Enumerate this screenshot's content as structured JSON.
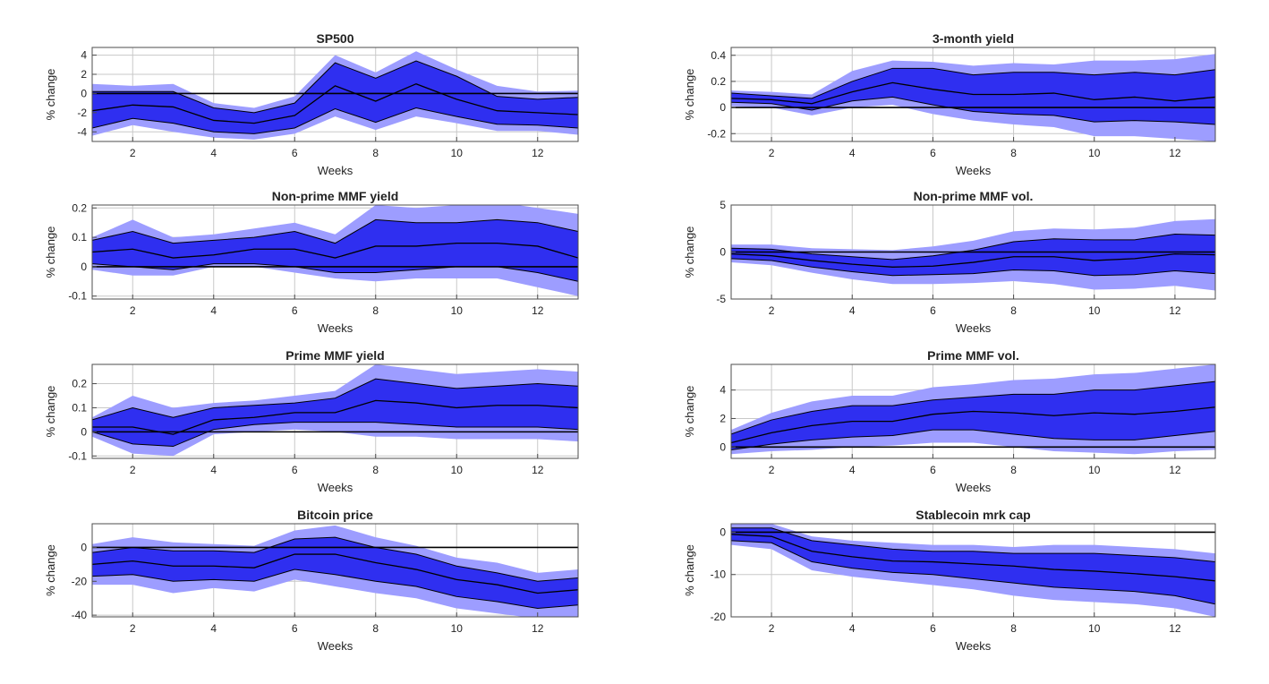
{
  "figure": {
    "xlabel": "Weeks",
    "ylabel": "% change"
  },
  "colors": {
    "outer_band": "#9d9dff",
    "inner_band": "#2f2ff0",
    "median_line": "#000000",
    "zero_line": "#000000",
    "grid": "#c8c8c8"
  },
  "chart_data": [
    {
      "type": "area",
      "title": "SP500",
      "xlabel": "Weeks",
      "ylabel": "% change",
      "x": [
        1,
        2,
        3,
        4,
        5,
        6,
        7,
        8,
        9,
        10,
        11,
        12,
        13
      ],
      "xlim": [
        1,
        13
      ],
      "xticks": [
        2,
        4,
        6,
        8,
        10,
        12
      ],
      "xtick_labels": [
        "2",
        "4",
        "6",
        "8",
        "10",
        "12"
      ],
      "ylim": [
        -5,
        4.8
      ],
      "yticks": [
        -4,
        -2,
        0,
        2,
        4
      ],
      "ytick_labels": [
        "-4",
        "-2",
        "0",
        "2",
        "4"
      ],
      "grid": true,
      "series": [
        {
          "name": "outer_upper",
          "values": [
            1.0,
            0.8,
            1.0,
            -1.0,
            -1.5,
            -0.3,
            4.0,
            2.2,
            4.4,
            2.5,
            0.8,
            0.2,
            0.3
          ]
        },
        {
          "name": "inner_upper",
          "values": [
            0.2,
            0.2,
            0.2,
            -1.5,
            -2.0,
            -1.0,
            3.2,
            1.6,
            3.4,
            1.8,
            -0.3,
            -0.6,
            -0.4
          ]
        },
        {
          "name": "median",
          "values": [
            -1.8,
            -1.2,
            -1.4,
            -2.8,
            -3.1,
            -2.3,
            0.8,
            -0.8,
            1.0,
            -0.6,
            -1.8,
            -2.0,
            -2.2
          ]
        },
        {
          "name": "inner_lower",
          "values": [
            -3.6,
            -2.6,
            -3.1,
            -4.0,
            -4.2,
            -3.6,
            -1.6,
            -3.0,
            -1.5,
            -2.4,
            -3.2,
            -3.3,
            -3.6
          ]
        },
        {
          "name": "outer_lower",
          "values": [
            -4.4,
            -3.3,
            -4.0,
            -4.6,
            -4.8,
            -4.2,
            -2.4,
            -3.8,
            -2.4,
            -3.1,
            -3.9,
            -3.9,
            -4.3
          ]
        }
      ]
    },
    {
      "type": "area",
      "title": "3-month yield",
      "xlabel": "Weeks",
      "ylabel": "% change",
      "x": [
        1,
        2,
        3,
        4,
        5,
        6,
        7,
        8,
        9,
        10,
        11,
        12,
        13
      ],
      "xlim": [
        1,
        13
      ],
      "xticks": [
        2,
        4,
        6,
        8,
        10,
        12
      ],
      "xtick_labels": [
        "2",
        "4",
        "6",
        "8",
        "10",
        "12"
      ],
      "ylim": [
        -0.26,
        0.46
      ],
      "yticks": [
        -0.2,
        0,
        0.2,
        0.4
      ],
      "ytick_labels": [
        "-0.2",
        "0",
        "0.2",
        "0.4"
      ],
      "grid": true,
      "series": [
        {
          "name": "outer_upper",
          "values": [
            0.13,
            0.12,
            0.1,
            0.28,
            0.36,
            0.35,
            0.32,
            0.34,
            0.33,
            0.36,
            0.36,
            0.37,
            0.41
          ]
        },
        {
          "name": "inner_upper",
          "values": [
            0.11,
            0.09,
            0.07,
            0.2,
            0.3,
            0.3,
            0.25,
            0.27,
            0.27,
            0.25,
            0.27,
            0.25,
            0.29
          ]
        },
        {
          "name": "median",
          "values": [
            0.07,
            0.06,
            0.03,
            0.12,
            0.19,
            0.14,
            0.1,
            0.1,
            0.11,
            0.06,
            0.08,
            0.05,
            0.08
          ]
        },
        {
          "name": "inner_lower",
          "values": [
            0.04,
            0.03,
            -0.02,
            0.05,
            0.08,
            0.02,
            -0.03,
            -0.05,
            -0.06,
            -0.11,
            -0.1,
            -0.11,
            -0.13
          ]
        },
        {
          "name": "outer_lower",
          "values": [
            0.01,
            0.0,
            -0.06,
            0.0,
            0.02,
            -0.05,
            -0.1,
            -0.13,
            -0.15,
            -0.22,
            -0.22,
            -0.24,
            -0.26
          ]
        }
      ]
    },
    {
      "type": "area",
      "title": "Non-prime MMF yield",
      "xlabel": "Weeks",
      "ylabel": "% change",
      "x": [
        1,
        2,
        3,
        4,
        5,
        6,
        7,
        8,
        9,
        10,
        11,
        12,
        13
      ],
      "xlim": [
        1,
        13
      ],
      "xticks": [
        2,
        4,
        6,
        8,
        10,
        12
      ],
      "xtick_labels": [
        "2",
        "4",
        "6",
        "8",
        "10",
        "12"
      ],
      "ylim": [
        -0.11,
        0.21
      ],
      "yticks": [
        -0.1,
        0,
        0.1,
        0.2
      ],
      "ytick_labels": [
        "-0.1",
        "0",
        "0.1",
        "0.2"
      ],
      "grid": true,
      "series": [
        {
          "name": "outer_upper",
          "values": [
            0.1,
            0.16,
            0.1,
            0.11,
            0.13,
            0.15,
            0.11,
            0.21,
            0.2,
            0.21,
            0.22,
            0.2,
            0.18
          ]
        },
        {
          "name": "inner_upper",
          "values": [
            0.09,
            0.12,
            0.08,
            0.09,
            0.1,
            0.12,
            0.08,
            0.16,
            0.15,
            0.15,
            0.16,
            0.15,
            0.12
          ]
        },
        {
          "name": "median",
          "values": [
            0.05,
            0.06,
            0.03,
            0.04,
            0.06,
            0.06,
            0.03,
            0.07,
            0.07,
            0.08,
            0.08,
            0.07,
            0.03
          ]
        },
        {
          "name": "inner_lower",
          "values": [
            0.01,
            0.0,
            -0.01,
            0.01,
            0.01,
            0.0,
            -0.02,
            -0.02,
            -0.01,
            0.0,
            0.0,
            -0.02,
            -0.05
          ]
        },
        {
          "name": "outer_lower",
          "values": [
            -0.01,
            -0.03,
            -0.03,
            0.0,
            0.0,
            -0.02,
            -0.04,
            -0.05,
            -0.04,
            -0.04,
            -0.04,
            -0.07,
            -0.1
          ]
        }
      ]
    },
    {
      "type": "area",
      "title": "Non-prime MMF vol.",
      "xlabel": "Weeks",
      "ylabel": "% change",
      "x": [
        1,
        2,
        3,
        4,
        5,
        6,
        7,
        8,
        9,
        10,
        11,
        12,
        13
      ],
      "xlim": [
        1,
        13
      ],
      "xticks": [
        2,
        4,
        6,
        8,
        10,
        12
      ],
      "xtick_labels": [
        "2",
        "4",
        "6",
        "8",
        "10",
        "12"
      ],
      "ylim": [
        -5,
        5
      ],
      "yticks": [
        -5,
        0,
        5
      ],
      "ytick_labels": [
        "-5",
        "0",
        "5"
      ],
      "grid": true,
      "series": [
        {
          "name": "outer_upper",
          "values": [
            0.8,
            0.8,
            0.4,
            0.3,
            0.2,
            0.6,
            1.2,
            2.2,
            2.5,
            2.4,
            2.6,
            3.3,
            3.5
          ]
        },
        {
          "name": "inner_upper",
          "values": [
            0.4,
            0.3,
            -0.2,
            -0.5,
            -0.8,
            -0.4,
            0.2,
            1.1,
            1.4,
            1.3,
            1.3,
            1.9,
            1.8
          ]
        },
        {
          "name": "median",
          "values": [
            -0.2,
            -0.4,
            -0.9,
            -1.3,
            -1.6,
            -1.5,
            -1.1,
            -0.5,
            -0.5,
            -0.9,
            -0.7,
            -0.2,
            -0.3
          ]
        },
        {
          "name": "inner_lower",
          "values": [
            -0.7,
            -0.9,
            -1.6,
            -2.1,
            -2.5,
            -2.4,
            -2.3,
            -1.9,
            -2.0,
            -2.5,
            -2.4,
            -2.0,
            -2.3
          ]
        },
        {
          "name": "outer_lower",
          "values": [
            -1.1,
            -1.4,
            -2.2,
            -2.9,
            -3.4,
            -3.4,
            -3.3,
            -3.1,
            -3.4,
            -4.0,
            -3.9,
            -3.6,
            -4.1
          ]
        }
      ]
    },
    {
      "type": "area",
      "title": "Prime MMF yield",
      "xlabel": "Weeks",
      "ylabel": "% change",
      "x": [
        1,
        2,
        3,
        4,
        5,
        6,
        7,
        8,
        9,
        10,
        11,
        12,
        13
      ],
      "xlim": [
        1,
        13
      ],
      "xticks": [
        2,
        4,
        6,
        8,
        10,
        12
      ],
      "xtick_labels": [
        "2",
        "4",
        "6",
        "8",
        "10",
        "12"
      ],
      "ylim": [
        -0.11,
        0.28
      ],
      "yticks": [
        -0.1,
        0,
        0.1,
        0.2
      ],
      "ytick_labels": [
        "-0.1",
        "0",
        "0.1",
        "0.2"
      ],
      "grid": true,
      "series": [
        {
          "name": "outer_upper",
          "values": [
            0.06,
            0.15,
            0.1,
            0.12,
            0.13,
            0.15,
            0.17,
            0.28,
            0.26,
            0.24,
            0.25,
            0.26,
            0.25
          ]
        },
        {
          "name": "inner_upper",
          "values": [
            0.05,
            0.1,
            0.06,
            0.1,
            0.11,
            0.12,
            0.14,
            0.22,
            0.2,
            0.18,
            0.19,
            0.2,
            0.19
          ]
        },
        {
          "name": "median",
          "values": [
            0.02,
            0.02,
            -0.01,
            0.05,
            0.06,
            0.08,
            0.08,
            0.13,
            0.12,
            0.1,
            0.11,
            0.11,
            0.1
          ]
        },
        {
          "name": "inner_lower",
          "values": [
            0.0,
            -0.05,
            -0.06,
            0.01,
            0.03,
            0.04,
            0.04,
            0.04,
            0.03,
            0.02,
            0.02,
            0.02,
            0.01
          ]
        },
        {
          "name": "outer_lower",
          "values": [
            -0.02,
            -0.09,
            -0.1,
            -0.01,
            0.0,
            0.01,
            0.0,
            -0.02,
            -0.02,
            -0.03,
            -0.03,
            -0.03,
            -0.04
          ]
        }
      ]
    },
    {
      "type": "area",
      "title": "Prime MMF vol.",
      "xlabel": "Weeks",
      "ylabel": "% change",
      "x": [
        1,
        2,
        3,
        4,
        5,
        6,
        7,
        8,
        9,
        10,
        11,
        12,
        13
      ],
      "xlim": [
        1,
        13
      ],
      "xticks": [
        2,
        4,
        6,
        8,
        10,
        12
      ],
      "xtick_labels": [
        "2",
        "4",
        "6",
        "8",
        "10",
        "12"
      ],
      "ylim": [
        -0.8,
        5.8
      ],
      "yticks": [
        0,
        2,
        4
      ],
      "ytick_labels": [
        "0",
        "2",
        "4"
      ],
      "grid": true,
      "series": [
        {
          "name": "outer_upper",
          "values": [
            1.2,
            2.4,
            3.2,
            3.6,
            3.6,
            4.2,
            4.4,
            4.7,
            4.8,
            5.1,
            5.2,
            5.5,
            5.8
          ]
        },
        {
          "name": "inner_upper",
          "values": [
            0.9,
            1.9,
            2.5,
            2.9,
            2.9,
            3.3,
            3.5,
            3.7,
            3.7,
            4.0,
            4.0,
            4.3,
            4.6
          ]
        },
        {
          "name": "median",
          "values": [
            0.3,
            1.0,
            1.5,
            1.8,
            1.8,
            2.3,
            2.5,
            2.4,
            2.2,
            2.4,
            2.3,
            2.5,
            2.8
          ]
        },
        {
          "name": "inner_lower",
          "values": [
            -0.2,
            0.2,
            0.5,
            0.7,
            0.8,
            1.2,
            1.2,
            0.9,
            0.6,
            0.5,
            0.5,
            0.8,
            1.1
          ]
        },
        {
          "name": "outer_lower",
          "values": [
            -0.5,
            -0.3,
            -0.2,
            0.0,
            0.1,
            0.3,
            0.3,
            0.0,
            -0.3,
            -0.4,
            -0.5,
            -0.3,
            -0.2
          ]
        }
      ]
    },
    {
      "type": "area",
      "title": "Bitcoin price",
      "xlabel": "Weeks",
      "ylabel": "% change",
      "x": [
        1,
        2,
        3,
        4,
        5,
        6,
        7,
        8,
        9,
        10,
        11,
        12,
        13
      ],
      "xlim": [
        1,
        13
      ],
      "xticks": [
        2,
        4,
        6,
        8,
        10,
        12
      ],
      "xtick_labels": [
        "2",
        "4",
        "6",
        "8",
        "10",
        "12"
      ],
      "ylim": [
        -41,
        14
      ],
      "yticks": [
        -40,
        -20,
        0
      ],
      "ytick_labels": [
        "-40",
        "-20",
        "0"
      ],
      "grid": true,
      "series": [
        {
          "name": "outer_upper",
          "values": [
            2,
            6,
            3,
            2,
            1,
            10,
            13,
            6,
            1,
            -6,
            -9,
            -15,
            -13
          ]
        },
        {
          "name": "inner_upper",
          "values": [
            -3,
            0,
            -2,
            -2,
            -3,
            5,
            6,
            0,
            -4,
            -11,
            -15,
            -20,
            -18
          ]
        },
        {
          "name": "median",
          "values": [
            -10,
            -8,
            -11,
            -11,
            -12,
            -4,
            -4,
            -9,
            -13,
            -19,
            -22,
            -27,
            -25
          ]
        },
        {
          "name": "inner_lower",
          "values": [
            -17,
            -16,
            -20,
            -19,
            -20,
            -13,
            -16,
            -20,
            -23,
            -29,
            -32,
            -36,
            -34
          ]
        },
        {
          "name": "outer_lower",
          "values": [
            -22,
            -22,
            -27,
            -24,
            -26,
            -19,
            -23,
            -27,
            -30,
            -36,
            -39,
            -42,
            -41
          ]
        }
      ]
    },
    {
      "type": "area",
      "title": "Stablecoin mrk cap",
      "xlabel": "Weeks",
      "ylabel": "% change",
      "x": [
        1,
        2,
        3,
        4,
        5,
        6,
        7,
        8,
        9,
        10,
        11,
        12,
        13
      ],
      "xlim": [
        1,
        13
      ],
      "xticks": [
        2,
        4,
        6,
        8,
        10,
        12
      ],
      "xtick_labels": [
        "2",
        "4",
        "6",
        "8",
        "10",
        "12"
      ],
      "ylim": [
        -20,
        2
      ],
      "yticks": [
        -20,
        -10,
        0
      ],
      "ytick_labels": [
        "-20",
        "-10",
        "0"
      ],
      "grid": true,
      "series": [
        {
          "name": "outer_upper",
          "values": [
            2,
            2,
            -1,
            -2,
            -2.5,
            -3,
            -3,
            -3.5,
            -3,
            -3,
            -3.5,
            -4,
            -5
          ]
        },
        {
          "name": "inner_upper",
          "values": [
            1,
            1,
            -2,
            -3,
            -4,
            -4.5,
            -4.5,
            -5,
            -5,
            -5,
            -5.5,
            -6,
            -7
          ]
        },
        {
          "name": "median",
          "values": [
            -0.5,
            -1,
            -4.5,
            -5.8,
            -6.8,
            -7,
            -7.5,
            -8,
            -8.8,
            -9.2,
            -9.8,
            -10.5,
            -11.5
          ]
        },
        {
          "name": "inner_lower",
          "values": [
            -2,
            -2.5,
            -7,
            -8.5,
            -9.5,
            -10,
            -11,
            -12,
            -13,
            -13.5,
            -14,
            -15,
            -17
          ]
        },
        {
          "name": "outer_lower",
          "values": [
            -3,
            -4,
            -9,
            -10.5,
            -11.5,
            -12.5,
            -13.5,
            -15,
            -16,
            -16.5,
            -17,
            -18,
            -20
          ]
        }
      ]
    }
  ]
}
